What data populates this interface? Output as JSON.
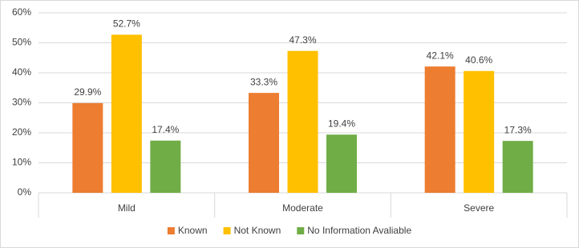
{
  "chart_data": {
    "type": "bar",
    "categories": [
      "Mild",
      "Moderate",
      "Severe"
    ],
    "series": [
      {
        "name": "Known",
        "color": "#ED7D31",
        "values": [
          29.9,
          33.3,
          42.1
        ],
        "value_labels": [
          "29.9%",
          "33.3%",
          "42.1%"
        ]
      },
      {
        "name": "Not Known",
        "color": "#FFC000",
        "values": [
          52.7,
          47.3,
          40.6
        ],
        "value_labels": [
          "52.7%",
          "47.3%",
          "40.6%"
        ]
      },
      {
        "name": "No Information Avaliable",
        "color": "#70AD47",
        "values": [
          17.4,
          19.4,
          17.3
        ],
        "value_labels": [
          "17.4%",
          "19.4%",
          "17.3%"
        ]
      }
    ],
    "ylim": [
      0,
      60
    ],
    "yticks": [
      {
        "value": 0,
        "label": "0%"
      },
      {
        "value": 10,
        "label": "10%"
      },
      {
        "value": 20,
        "label": "20%"
      },
      {
        "value": 30,
        "label": "30%"
      },
      {
        "value": 40,
        "label": "40%"
      },
      {
        "value": 50,
        "label": "50%"
      },
      {
        "value": 60,
        "label": "60%"
      }
    ],
    "grid": true,
    "legend": "bottom"
  }
}
